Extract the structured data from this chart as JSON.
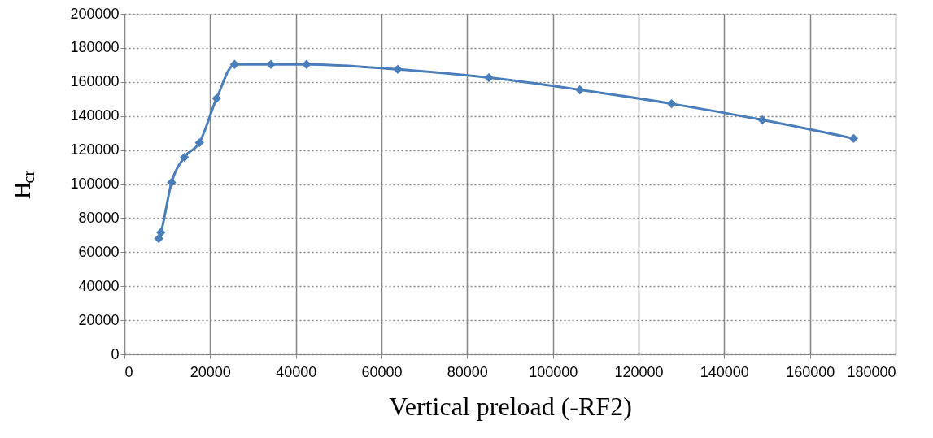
{
  "chart_data": {
    "type": "line",
    "xlabel": "Vertical preload (-RF2)",
    "ylabel": "H$_{cr}$",
    "x": [
      8000,
      8500,
      11000,
      14000,
      17500,
      21500,
      25700,
      34200,
      42500,
      63800,
      85100,
      106300,
      127700,
      148900,
      170200
    ],
    "series": [
      {
        "color": "#4a7ebb",
        "values": [
          68000,
          71600,
          101000,
          115800,
          124300,
          150300,
          170300,
          170300,
          170300,
          167400,
          162500,
          155400,
          147200,
          137700,
          126800
        ]
      }
    ],
    "xlim": [
      0,
      180000
    ],
    "xticks": [
      0,
      20000,
      40000,
      60000,
      80000,
      100000,
      120000,
      140000,
      160000,
      180000
    ],
    "ylim": [
      0,
      200000
    ],
    "yticks": [
      0,
      20000,
      40000,
      60000,
      80000,
      100000,
      120000,
      140000,
      160000,
      180000,
      200000
    ],
    "grid": true,
    "marker": "diamond",
    "line_style": "solid"
  }
}
